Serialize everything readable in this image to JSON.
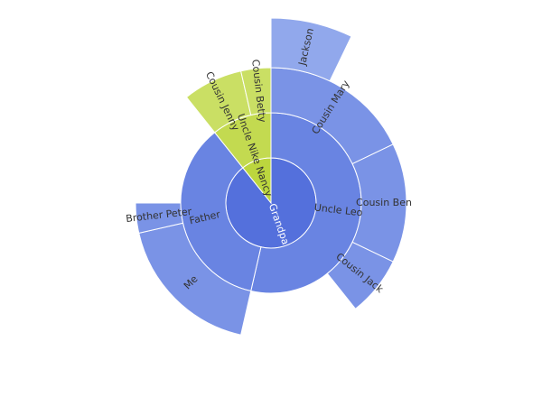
{
  "chart_data": {
    "type": "sunburst",
    "data": [
      {
        "name": "Grandpa",
        "value": 25,
        "color": "#5470dc",
        "children": [
          {
            "name": "Uncle Leo",
            "value": 15,
            "color": "#6984e2",
            "children": [
              {
                "name": "Cousin Mary",
                "value": 5,
                "color": "#7a93e6",
                "children": [
                  {
                    "name": "Jackson",
                    "value": 2,
                    "color": "#91a8ec"
                  }
                ]
              },
              {
                "name": "Cousin Ben",
                "value": 4,
                "color": "#7a93e6"
              },
              {
                "name": "Cousin Jack",
                "value": 2,
                "color": "#7a93e6"
              }
            ]
          },
          {
            "name": "Father",
            "value": 10,
            "color": "#6984e2",
            "children": [
              {
                "name": "Me",
                "value": 5,
                "color": "#7a93e6"
              },
              {
                "name": "Brother Peter",
                "value": 1,
                "color": "#7a93e6"
              }
            ]
          }
        ]
      },
      {
        "name": "Nancy",
        "value": 3,
        "color": "#bcd63e",
        "children": [
          {
            "name": "Uncle Nike",
            "value": 3,
            "color": "#c3da50",
            "children": [
              {
                "name": "Cousin Jenny",
                "value": 2,
                "color": "#cadf64"
              },
              {
                "name": "Cousin Betty",
                "value": 1,
                "color": "#cadf64"
              }
            ]
          }
        ]
      }
    ]
  }
}
